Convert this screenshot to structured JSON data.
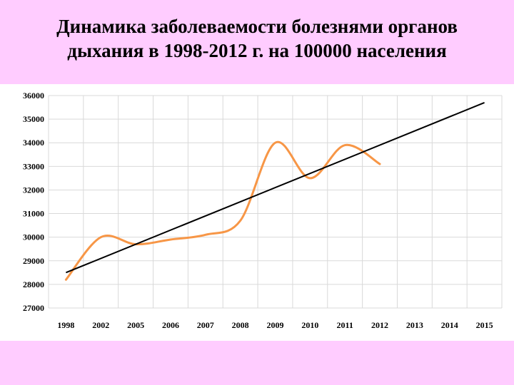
{
  "title_lines": [
    "Динамика заболеваемости болезнями органов",
    "дыхания в 1998-2012 г. на 100000 населения"
  ],
  "colors": {
    "background": "#ffccff",
    "plot_background": "#ffffff",
    "gridline": "#d9d9d9",
    "series": "#f79646",
    "trend": "#000000"
  },
  "chart_data": {
    "type": "line",
    "title": "",
    "xlabel": "",
    "ylabel": "",
    "categories": [
      "1998",
      "2002",
      "2005",
      "2006",
      "2007",
      "2008",
      "2009",
      "2010",
      "2011",
      "2012",
      "2013",
      "2014",
      "2015"
    ],
    "ylim": [
      27000,
      36000
    ],
    "yticks": [
      "27000",
      "28000",
      "29000",
      "30000",
      "31000",
      "32000",
      "33000",
      "34000",
      "35000",
      "36000"
    ],
    "grid": true,
    "legend": "none",
    "series": [
      {
        "style": "smooth",
        "values": [
          28200,
          30000,
          29700,
          29900,
          30100,
          30700,
          34000,
          32500,
          33900,
          33100,
          null,
          null,
          null
        ]
      },
      {
        "style": "linear-trend",
        "values": [
          28500,
          29100,
          29700,
          30300,
          30900,
          31500,
          32100,
          32700,
          33300,
          33900,
          34500,
          35100,
          35700
        ]
      }
    ]
  }
}
